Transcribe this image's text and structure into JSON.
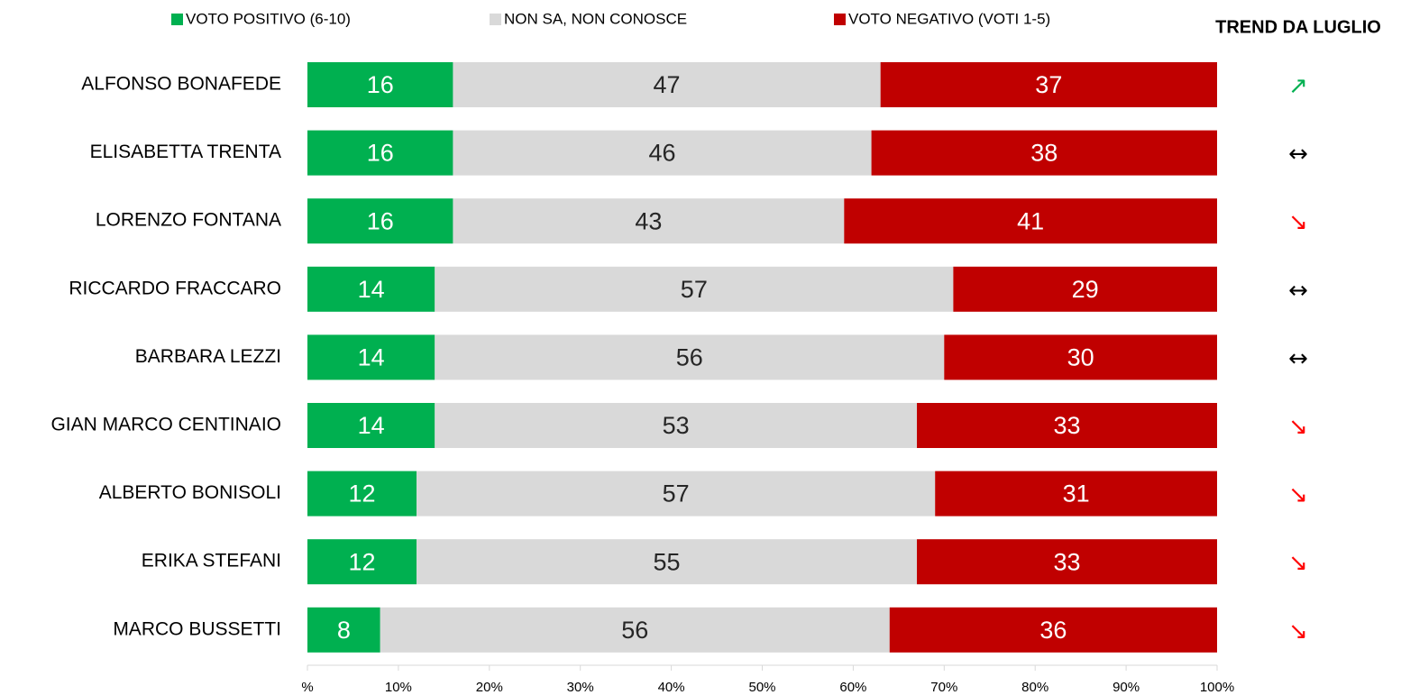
{
  "chart_data": {
    "type": "stacked_barh",
    "categories": [
      "ALFONSO BONAFEDE",
      "ELISABETTA TRENTA",
      "LORENZO FONTANA",
      "RICCARDO FRACCARO",
      "BARBARA LEZZI",
      "GIAN MARCO CENTINAIO",
      "ALBERTO BONISOLI",
      "ERIKA STEFANI",
      "MARCO BUSSETTI"
    ],
    "series": [
      {
        "name": "VOTO POSITIVO (6-10)",
        "color": "#00b050",
        "values": [
          16,
          16,
          16,
          14,
          14,
          14,
          12,
          12,
          8
        ]
      },
      {
        "name": "NON SA, NON CONOSCE",
        "color": "#d9d9d9",
        "values": [
          47,
          46,
          43,
          57,
          56,
          53,
          57,
          55,
          56
        ]
      },
      {
        "name": "VOTO NEGATIVO (VOTI 1-5)",
        "color": "#c00000",
        "values": [
          37,
          38,
          41,
          29,
          30,
          33,
          31,
          33,
          36
        ]
      }
    ],
    "xlim": [
      0,
      100
    ],
    "xticks": [
      {
        "value": 0,
        "label": "%"
      },
      {
        "value": 10,
        "label": "10%"
      },
      {
        "value": 20,
        "label": "20%"
      },
      {
        "value": 30,
        "label": "30%"
      },
      {
        "value": 40,
        "label": "40%"
      },
      {
        "value": 50,
        "label": "50%"
      },
      {
        "value": 60,
        "label": "60%"
      },
      {
        "value": 70,
        "label": "70%"
      },
      {
        "value": 80,
        "label": "80%"
      },
      {
        "value": 90,
        "label": "90%"
      },
      {
        "value": 100,
        "label": "100%"
      }
    ],
    "trend_title": "TREND DA LUGLIO",
    "trend": [
      "↗",
      "↔",
      "↘",
      "↔",
      "↔",
      "↘",
      "↘",
      "↘",
      "↘"
    ],
    "trend_colors": [
      "#00b050",
      "#000000",
      "#ff0000",
      "#000000",
      "#000000",
      "#ff0000",
      "#ff0000",
      "#ff0000",
      "#ff0000"
    ],
    "legend": "top"
  }
}
